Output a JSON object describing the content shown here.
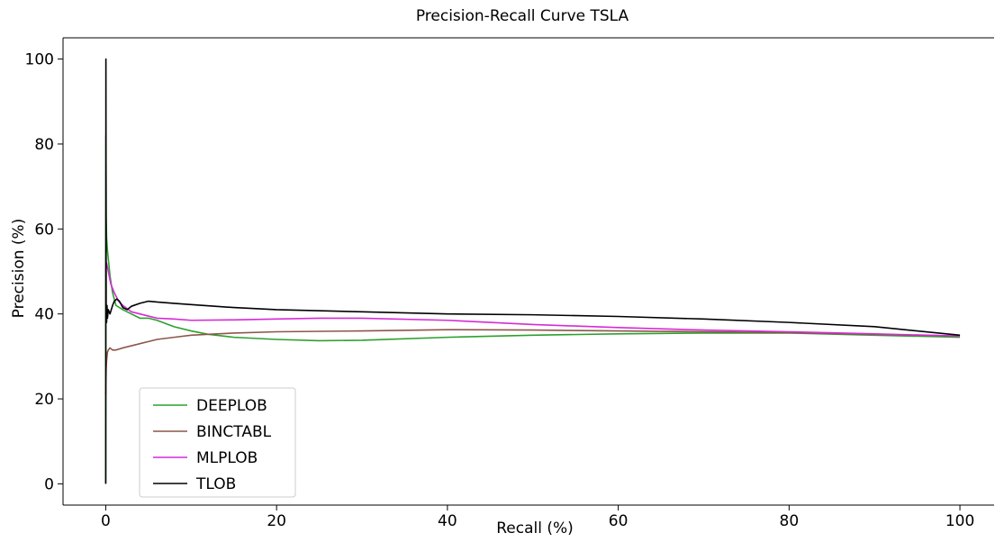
{
  "chart_data": {
    "type": "line",
    "title": "Precision-Recall Curve TSLA",
    "xlabel": "Recall (%)",
    "ylabel": "Precision (%)",
    "xlim": [
      -5,
      104
    ],
    "ylim": [
      -5,
      105
    ],
    "xticks": [
      0,
      20,
      40,
      60,
      80,
      100
    ],
    "yticks": [
      0,
      20,
      40,
      60,
      80,
      100
    ],
    "grid": false,
    "legend_position": "lower-left",
    "series": [
      {
        "name": "DEEPLOB",
        "color": "#2ca02c",
        "x": [
          0,
          0.02,
          0.05,
          0.1,
          0.2,
          0.35,
          0.5,
          0.8,
          1.2,
          2,
          3,
          4,
          5,
          6,
          8,
          10,
          12,
          15,
          20,
          25,
          30,
          40,
          50,
          60,
          70,
          80,
          90,
          100
        ],
        "y": [
          0,
          82,
          63,
          58,
          55,
          52,
          49,
          45,
          42,
          41,
          40,
          39,
          39,
          38.5,
          37,
          36,
          35.2,
          34.5,
          34,
          33.7,
          33.8,
          34.5,
          35,
          35.3,
          35.5,
          35.5,
          35,
          34.5
        ]
      },
      {
        "name": "BINCTABL",
        "color": "#8c564b",
        "x": [
          0,
          0.05,
          0.1,
          0.2,
          0.3,
          0.5,
          0.8,
          1.2,
          2,
          3,
          4,
          5,
          6,
          8,
          10,
          12,
          15,
          20,
          30,
          40,
          50,
          60,
          70,
          80,
          90,
          100
        ],
        "y": [
          21,
          27,
          29,
          31,
          31.5,
          32,
          31.5,
          31.5,
          32,
          32.5,
          33,
          33.5,
          34,
          34.5,
          35,
          35.2,
          35.5,
          35.8,
          36,
          36.3,
          36.2,
          36,
          35.8,
          35.6,
          35.2,
          34.8
        ]
      },
      {
        "name": "MLPLOB",
        "color": "#d62ad6",
        "x": [
          0,
          0.1,
          0.2,
          0.4,
          0.6,
          1,
          1.5,
          2,
          3,
          4,
          5,
          6,
          8,
          10,
          15,
          20,
          25,
          30,
          40,
          50,
          60,
          70,
          80,
          90,
          100
        ],
        "y": [
          50,
          52,
          51,
          49,
          47,
          45,
          43,
          42,
          40.5,
          40,
          39.5,
          39,
          38.8,
          38.5,
          38.6,
          38.8,
          39,
          39,
          38.5,
          37.5,
          36.8,
          36.2,
          35.8,
          35.3,
          34.8
        ]
      },
      {
        "name": "TLOB",
        "color": "#000000",
        "x": [
          0,
          0.02,
          0.05,
          0.1,
          0.15,
          0.2,
          0.3,
          0.5,
          0.8,
          1,
          1.3,
          1.6,
          2,
          2.5,
          3,
          4,
          5,
          6,
          8,
          10,
          15,
          20,
          30,
          40,
          50,
          60,
          70,
          80,
          90,
          100
        ],
        "y": [
          0,
          100,
          40,
          38,
          42,
          39,
          41,
          40,
          42,
          43,
          43.5,
          43,
          41.5,
          41,
          41.8,
          42.5,
          43,
          42.8,
          42.5,
          42.2,
          41.5,
          41,
          40.5,
          40,
          39.8,
          39.4,
          38.8,
          38,
          37,
          35
        ]
      }
    ]
  }
}
